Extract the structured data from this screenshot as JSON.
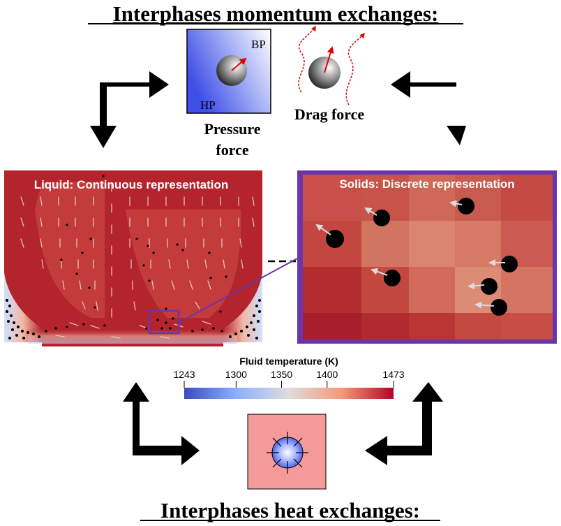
{
  "title_top": "Interphases momentum exchanges:",
  "title_bottom": "Interphases heat exchanges:",
  "pressure_box": {
    "label_bp": "BP",
    "label_hp": "HP"
  },
  "pressure_label_line1": "Pressure",
  "pressure_label_line2": "force",
  "drag_label": "Drag force",
  "liquid_title": "Liquid: Continuous representation",
  "solids_title": "Solids: Discrete representation",
  "colorbar": {
    "title": "Fluid temperature (K)",
    "ticks": [
      "1243",
      "1300",
      "1350",
      "1400",
      "1473"
    ],
    "range": [
      1243,
      1473
    ],
    "colors": [
      "#3b4cc0",
      "#dddddd",
      "#b40426"
    ]
  },
  "colors": {
    "liquid_hot": "#b3242c",
    "cold": "#2f4fd6",
    "zoom_frame": "#6a35a8",
    "heat_box": "#f59a9a",
    "arrow": "#000000",
    "force_arrow": "#e00000"
  }
}
